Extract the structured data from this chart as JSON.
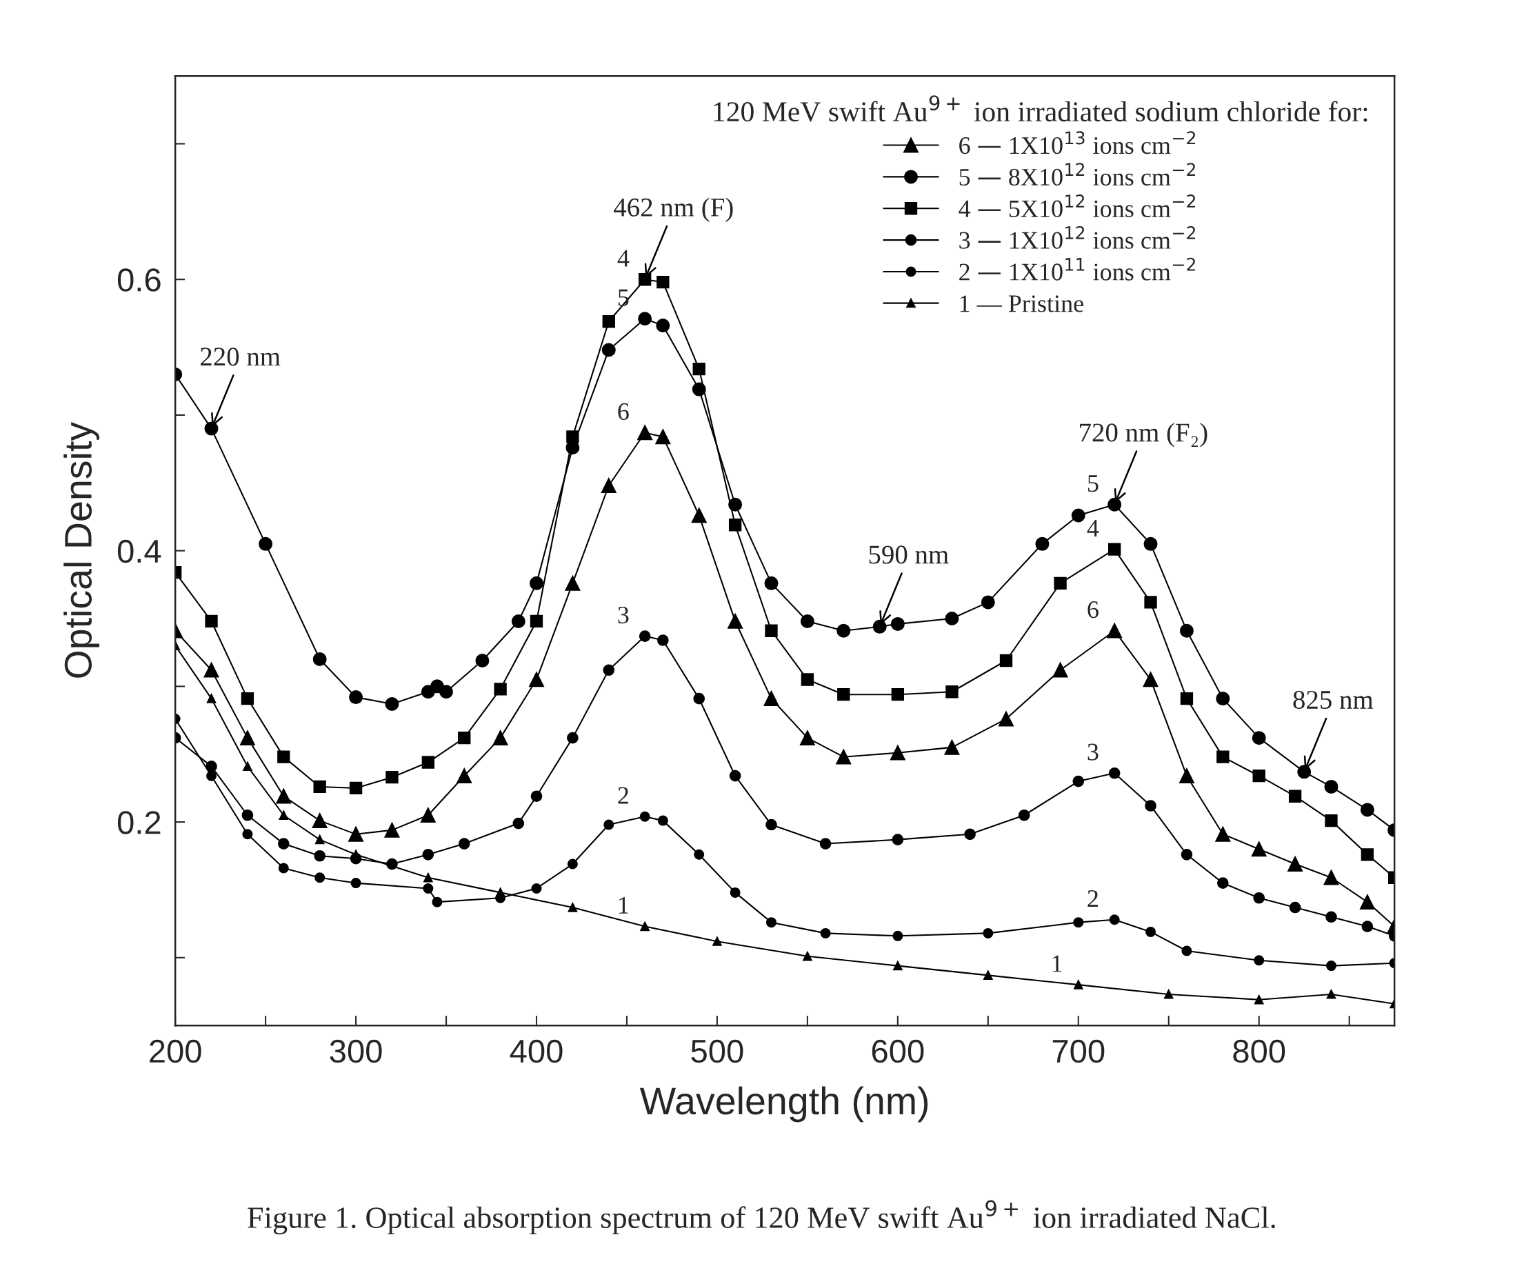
{
  "chart_data": {
    "type": "line",
    "xlabel": "Wavelength (nm)",
    "ylabel": "Optical Density",
    "legend_title": "120 MeV swift Au$^{9+}$ ion irradiated sodium chloride for:",
    "legend": "top right",
    "grid": false,
    "line_style": "solid",
    "xlim": [
      200,
      875
    ],
    "ylim": [
      0.05,
      0.75
    ],
    "xticks": [
      200,
      {
        "value": 250,
        "label": null
      },
      300,
      {
        "value": 350,
        "label": null
      },
      400,
      {
        "value": 450,
        "label": null
      },
      500,
      {
        "value": 550,
        "label": null
      },
      600,
      {
        "value": 650,
        "label": null
      },
      700,
      {
        "value": 750,
        "label": null
      },
      800,
      {
        "value": 850,
        "label": null
      }
    ],
    "yticks": [
      {
        "value": 0.1,
        "label": null
      },
      0.2,
      {
        "value": 0.3,
        "label": null
      },
      0.4,
      {
        "value": 0.5,
        "label": null
      },
      0.6,
      {
        "value": 0.7,
        "label": null
      }
    ],
    "series": [
      {
        "name": "6 — 1X10$^{13}$ ions cm$^{−2}$",
        "color": "#000000",
        "marker": "triangle",
        "x": [
          200,
          220,
          240,
          260,
          280,
          300,
          320,
          340,
          360,
          380,
          400,
          420,
          440,
          460,
          470,
          490,
          510,
          530,
          550,
          570,
          600,
          630,
          660,
          690,
          720,
          740,
          760,
          780,
          800,
          820,
          840,
          860,
          875
        ],
        "values": [
          0.341,
          0.312,
          0.262,
          0.219,
          0.201,
          0.191,
          0.194,
          0.205,
          0.234,
          0.262,
          0.305,
          0.376,
          0.448,
          0.487,
          0.484,
          0.426,
          0.348,
          0.291,
          0.262,
          0.248,
          0.251,
          0.255,
          0.276,
          0.312,
          0.341,
          0.305,
          0.234,
          0.191,
          0.18,
          0.169,
          0.159,
          0.141,
          0.123
        ]
      },
      {
        "name": "5 — 8X10$^{12}$ ions cm$^{−2}$",
        "color": "#000000",
        "marker": "circle",
        "x": [
          200,
          220,
          250,
          280,
          300,
          320,
          340,
          345,
          350,
          370,
          390,
          400,
          420,
          440,
          460,
          470,
          490,
          510,
          530,
          550,
          570,
          590,
          600,
          630,
          650,
          680,
          700,
          720,
          740,
          760,
          780,
          800,
          825,
          840,
          860,
          875
        ],
        "values": [
          0.53,
          0.49,
          0.405,
          0.32,
          0.292,
          0.287,
          0.296,
          0.3,
          0.296,
          0.319,
          0.348,
          0.376,
          0.476,
          0.548,
          0.571,
          0.566,
          0.519,
          0.434,
          0.376,
          0.348,
          0.341,
          0.344,
          0.346,
          0.35,
          0.362,
          0.405,
          0.426,
          0.434,
          0.405,
          0.341,
          0.291,
          0.262,
          0.237,
          0.226,
          0.209,
          0.194
        ]
      },
      {
        "name": "4 — 5X10$^{12}$ ions cm$^{−2}$",
        "color": "#000000",
        "marker": "square",
        "x": [
          200,
          220,
          240,
          260,
          280,
          300,
          320,
          340,
          360,
          380,
          400,
          420,
          440,
          460,
          470,
          490,
          510,
          530,
          550,
          570,
          600,
          630,
          660,
          690,
          720,
          740,
          760,
          780,
          800,
          820,
          840,
          860,
          875
        ],
        "values": [
          0.384,
          0.348,
          0.291,
          0.248,
          0.226,
          0.225,
          0.233,
          0.244,
          0.262,
          0.298,
          0.348,
          0.484,
          0.569,
          0.6,
          0.598,
          0.534,
          0.419,
          0.341,
          0.305,
          0.294,
          0.294,
          0.296,
          0.319,
          0.376,
          0.401,
          0.362,
          0.291,
          0.248,
          0.234,
          0.219,
          0.201,
          0.176,
          0.159
        ]
      },
      {
        "name": "3 — 1X10$^{12}$ ions cm$^{−2}$",
        "color": "#000000",
        "marker": "circle",
        "x": [
          200,
          220,
          240,
          260,
          280,
          300,
          320,
          340,
          360,
          390,
          400,
          420,
          440,
          460,
          470,
          490,
          510,
          530,
          560,
          600,
          640,
          670,
          700,
          720,
          740,
          760,
          780,
          800,
          820,
          840,
          860,
          875
        ],
        "values": [
          0.262,
          0.241,
          0.205,
          0.184,
          0.175,
          0.173,
          0.169,
          0.176,
          0.184,
          0.199,
          0.219,
          0.262,
          0.312,
          0.337,
          0.334,
          0.291,
          0.234,
          0.198,
          0.184,
          0.187,
          0.191,
          0.205,
          0.23,
          0.236,
          0.212,
          0.176,
          0.155,
          0.144,
          0.137,
          0.13,
          0.123,
          0.116
        ]
      },
      {
        "name": "2 — 1X10$^{11}$ ions cm$^{−2}$",
        "color": "#000000",
        "marker": "circle",
        "x": [
          200,
          220,
          240,
          260,
          280,
          300,
          340,
          345,
          380,
          400,
          420,
          440,
          460,
          470,
          490,
          510,
          530,
          560,
          600,
          650,
          700,
          720,
          740,
          760,
          800,
          840,
          875
        ],
        "values": [
          0.276,
          0.234,
          0.191,
          0.166,
          0.159,
          0.155,
          0.151,
          0.141,
          0.144,
          0.151,
          0.169,
          0.198,
          0.204,
          0.201,
          0.176,
          0.148,
          0.126,
          0.118,
          0.116,
          0.118,
          0.126,
          0.128,
          0.119,
          0.105,
          0.098,
          0.094,
          0.096
        ]
      },
      {
        "name": "1 — Pristine",
        "color": "#000000",
        "marker": "triangle",
        "x": [
          200,
          220,
          240,
          260,
          280,
          300,
          340,
          380,
          420,
          460,
          500,
          550,
          600,
          650,
          700,
          750,
          800,
          840,
          875
        ],
        "values": [
          0.33,
          0.291,
          0.241,
          0.205,
          0.187,
          0.176,
          0.159,
          0.148,
          0.137,
          0.123,
          0.112,
          0.101,
          0.094,
          0.087,
          0.08,
          0.073,
          0.069,
          0.073,
          0.066
        ]
      }
    ],
    "annotations": [
      {
        "text": "220 nm",
        "x": 220,
        "y": 0.49
      },
      {
        "text": "462 nm (F)",
        "x": 460,
        "y": 0.6
      },
      {
        "text": "590 nm",
        "x": 590,
        "y": 0.344
      },
      {
        "text": "720 nm (F₂)",
        "x": 720,
        "y": 0.434
      },
      {
        "text": "825 nm",
        "x": 825,
        "y": 0.237
      },
      {
        "text": "4",
        "x": 460,
        "y": 0.6
      },
      {
        "text": "5",
        "x": 460,
        "y": 0.571
      },
      {
        "text": "6",
        "x": 460,
        "y": 0.487
      },
      {
        "text": "3",
        "x": 460,
        "y": 0.337
      },
      {
        "text": "2",
        "x": 460,
        "y": 0.204
      },
      {
        "text": "1",
        "x": 460,
        "y": 0.123
      },
      {
        "text": "5",
        "x": 720,
        "y": 0.434
      },
      {
        "text": "4",
        "x": 720,
        "y": 0.401
      },
      {
        "text": "6",
        "x": 720,
        "y": 0.341
      },
      {
        "text": "3",
        "x": 720,
        "y": 0.236
      },
      {
        "text": "2",
        "x": 720,
        "y": 0.128
      },
      {
        "text": "1",
        "x": 700,
        "y": 0.08
      },
      "Figure 1. Optical absorption spectrum of 120 MeV swift Au$^{9+}$ ion irradiated NaCl."
    ]
  }
}
